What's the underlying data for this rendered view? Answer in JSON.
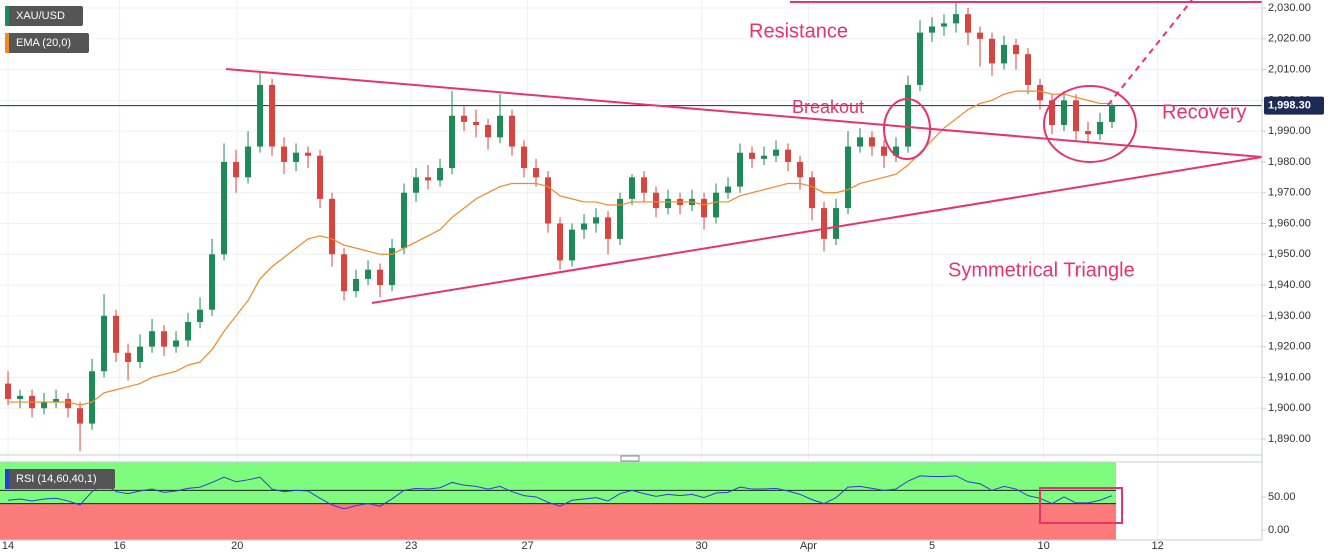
{
  "chart_data": [
    {
      "type": "candlestick",
      "name": "XAU/USD",
      "up_color": "#1e8a57",
      "down_color": "#d64540",
      "x": [
        0,
        1,
        2,
        3,
        4,
        5,
        6,
        7,
        8,
        9,
        10,
        11,
        12,
        13,
        14,
        15,
        16,
        17,
        18,
        19,
        20,
        21,
        22,
        23,
        24,
        25,
        26,
        27,
        28,
        29,
        30,
        31,
        32,
        33,
        34,
        35,
        36,
        37,
        38,
        39,
        40,
        41,
        42,
        43,
        44,
        45,
        46,
        47,
        48,
        49,
        50,
        51,
        52,
        53,
        54,
        55,
        56,
        57,
        58,
        59,
        60,
        61,
        62,
        63,
        64,
        65,
        66,
        67,
        68,
        69,
        70,
        71,
        72,
        73,
        74,
        75,
        76,
        77,
        78,
        79,
        80,
        81,
        82,
        83,
        84,
        85,
        86,
        87,
        88,
        89,
        90,
        91,
        92
      ],
      "ohlc": [
        [
          1908,
          1912,
          1901,
          1903
        ],
        [
          1903,
          1906,
          1900,
          1904
        ],
        [
          1904,
          1906,
          1897,
          1900
        ],
        [
          1900,
          1905,
          1898,
          1902
        ],
        [
          1902,
          1906,
          1900,
          1903
        ],
        [
          1903,
          1905,
          1897,
          1900
        ],
        [
          1900,
          1902,
          1886,
          1895
        ],
        [
          1895,
          1916,
          1893,
          1912
        ],
        [
          1912,
          1937,
          1910,
          1930
        ],
        [
          1930,
          1932,
          1915,
          1918
        ],
        [
          1918,
          1921,
          1909,
          1915
        ],
        [
          1915,
          1924,
          1913,
          1920
        ],
        [
          1920,
          1929,
          1918,
          1925
        ],
        [
          1925,
          1927,
          1917,
          1920
        ],
        [
          1920,
          1925,
          1918,
          1922
        ],
        [
          1922,
          1931,
          1920,
          1928
        ],
        [
          1928,
          1936,
          1926,
          1932
        ],
        [
          1932,
          1955,
          1930,
          1950
        ],
        [
          1950,
          1986,
          1948,
          1980
        ],
        [
          1980,
          1984,
          1970,
          1975
        ],
        [
          1975,
          1990,
          1973,
          1985
        ],
        [
          1985,
          2009,
          1983,
          2005
        ],
        [
          2005,
          2007,
          1982,
          1985
        ],
        [
          1985,
          1988,
          1976,
          1980
        ],
        [
          1980,
          1986,
          1977,
          1983
        ],
        [
          1983,
          1985,
          1978,
          1982
        ],
        [
          1982,
          1984,
          1965,
          1968
        ],
        [
          1968,
          1970,
          1946,
          1950
        ],
        [
          1950,
          1952,
          1935,
          1938
        ],
        [
          1938,
          1945,
          1936,
          1942
        ],
        [
          1942,
          1948,
          1940,
          1945
        ],
        [
          1945,
          1947,
          1936,
          1940
        ],
        [
          1940,
          1955,
          1938,
          1952
        ],
        [
          1952,
          1973,
          1950,
          1970
        ],
        [
          1970,
          1978,
          1967,
          1975
        ],
        [
          1975,
          1979,
          1971,
          1974
        ],
        [
          1974,
          1981,
          1972,
          1978
        ],
        [
          1978,
          2003,
          1976,
          1995
        ],
        [
          1995,
          1998,
          1990,
          1993
        ],
        [
          1993,
          1997,
          1988,
          1992
        ],
        [
          1992,
          1994,
          1984,
          1988
        ],
        [
          1988,
          2002,
          1986,
          1995
        ],
        [
          1995,
          1997,
          1982,
          1985
        ],
        [
          1985,
          1987,
          1975,
          1978
        ],
        [
          1978,
          1981,
          1972,
          1975
        ],
        [
          1975,
          1977,
          1957,
          1960
        ],
        [
          1960,
          1962,
          1945,
          1948
        ],
        [
          1948,
          1960,
          1946,
          1958
        ],
        [
          1958,
          1963,
          1955,
          1960
        ],
        [
          1960,
          1965,
          1957,
          1962
        ],
        [
          1962,
          1964,
          1950,
          1955
        ],
        [
          1955,
          1970,
          1953,
          1968
        ],
        [
          1968,
          1976,
          1966,
          1975
        ],
        [
          1975,
          1977,
          1967,
          1970
        ],
        [
          1970,
          1972,
          1962,
          1965
        ],
        [
          1965,
          1971,
          1963,
          1968
        ],
        [
          1968,
          1970,
          1963,
          1966
        ],
        [
          1966,
          1971,
          1964,
          1968
        ],
        [
          1968,
          1970,
          1958,
          1962
        ],
        [
          1962,
          1973,
          1960,
          1970
        ],
        [
          1970,
          1975,
          1968,
          1972
        ],
        [
          1972,
          1986,
          1970,
          1983
        ],
        [
          1983,
          1985,
          1978,
          1981
        ],
        [
          1981,
          1985,
          1979,
          1982
        ],
        [
          1982,
          1987,
          1980,
          1984
        ],
        [
          1984,
          1986,
          1977,
          1980
        ],
        [
          1980,
          1982,
          1971,
          1975
        ],
        [
          1975,
          1977,
          1961,
          1965
        ],
        [
          1965,
          1967,
          1951,
          1955
        ],
        [
          1955,
          1968,
          1953,
          1965
        ],
        [
          1965,
          1990,
          1963,
          1985
        ],
        [
          1985,
          1991,
          1983,
          1988
        ],
        [
          1988,
          1990,
          1982,
          1985
        ],
        [
          1985,
          1987,
          1978,
          1982
        ],
        [
          1982,
          1988,
          1980,
          1985
        ],
        [
          1985,
          2008,
          1983,
          2005
        ],
        [
          2005,
          2026,
          2003,
          2022
        ],
        [
          2022,
          2027,
          2019,
          2024
        ],
        [
          2024,
          2028,
          2021,
          2025
        ],
        [
          2025,
          2032,
          2022,
          2028
        ],
        [
          2028,
          2030,
          2018,
          2022
        ],
        [
          2022,
          2024,
          2011,
          2020
        ],
        [
          2020,
          2022,
          2008,
          2012
        ],
        [
          2012,
          2021,
          2010,
          2018
        ],
        [
          2018,
          2020,
          2010,
          2015
        ],
        [
          2015,
          2017,
          2002,
          2005
        ],
        [
          2005,
          2007,
          1997,
          2000
        ],
        [
          2000,
          2002,
          1989,
          1992
        ],
        [
          1992,
          2003,
          1990,
          2000
        ],
        [
          2000,
          2002,
          1987,
          1990
        ],
        [
          1990,
          1993,
          1986,
          1989
        ],
        [
          1989,
          1996,
          1987,
          1993
        ],
        [
          1993,
          1999,
          1991,
          1998.3
        ]
      ],
      "overlay": {
        "name": "EMA (20,0)",
        "color": "#f08a24",
        "values": [
          1902,
          1902,
          1902,
          1902,
          1902,
          1902,
          1901,
          1902,
          1905,
          1906,
          1907,
          1908,
          1910,
          1911,
          1912,
          1914,
          1915,
          1919,
          1925,
          1930,
          1935,
          1942,
          1946,
          1949,
          1952,
          1955,
          1956,
          1955,
          1953,
          1952,
          1951,
          1950,
          1950,
          1952,
          1954,
          1956,
          1958,
          1962,
          1965,
          1968,
          1970,
          1972,
          1973,
          1973,
          1973,
          1972,
          1969,
          1968,
          1967,
          1967,
          1966,
          1966,
          1967,
          1967,
          1967,
          1967,
          1967,
          1967,
          1966,
          1967,
          1967,
          1969,
          1970,
          1971,
          1972,
          1973,
          1973,
          1972,
          1970,
          1970,
          1971,
          1973,
          1974,
          1975,
          1976,
          1979,
          1983,
          1987,
          1991,
          1994,
          1997,
          1999,
          2000,
          2002,
          2003,
          2003,
          2003,
          2002,
          2002,
          2001,
          2000,
          1999,
          1999
        ]
      },
      "last_price": {
        "value": 1998.3,
        "label": "1,998.30"
      },
      "annotations": [
        "Resistance",
        "Breakout",
        "Recovery",
        "Symmetrical Triangle"
      ],
      "xlim": [
        -0.67,
        104.5
      ],
      "ylim": [
        1884.8,
        2032.6
      ],
      "xticks": [
        {
          "value": 0,
          "label": "14"
        },
        {
          "value": 9.3,
          "label": "16"
        },
        {
          "value": 19.1,
          "label": "20"
        },
        {
          "value": 33.6,
          "label": "23"
        },
        {
          "value": 43.3,
          "label": "27"
        },
        {
          "value": 57.8,
          "label": "30"
        },
        {
          "value": 66.7,
          "label": "Apr"
        },
        {
          "value": 77,
          "label": "5"
        },
        {
          "value": 86.3,
          "label": "10"
        },
        {
          "value": 95.8,
          "label": "12"
        }
      ],
      "yticks": [
        {
          "value": 2030,
          "label": "2,030.00"
        },
        {
          "value": 2020,
          "label": "2,020.00"
        },
        {
          "value": 2010,
          "label": "2,010.00"
        },
        {
          "value": 2000,
          "label": "2,000.00"
        },
        {
          "value": 1990,
          "label": "1,990.00"
        },
        {
          "value": 1980,
          "label": "1,980.00"
        },
        {
          "value": 1970,
          "label": "1,970.00"
        },
        {
          "value": 1960,
          "label": "1,960.00"
        },
        {
          "value": 1950,
          "label": "1,950.00"
        },
        {
          "value": 1940,
          "label": "1,940.00"
        },
        {
          "value": 1930,
          "label": "1,930.00"
        },
        {
          "value": 1920,
          "label": "1,920.00"
        },
        {
          "value": 1910,
          "label": "1,910.00"
        },
        {
          "value": 1900,
          "label": "1,900.00"
        },
        {
          "value": 1890,
          "label": "1,890.00"
        }
      ],
      "grid": true
    },
    {
      "type": "line",
      "name": "RSI (14,60,40,1)",
      "color": "#2b3fd6",
      "values": [
        45,
        47,
        44,
        47,
        48,
        44,
        38,
        58,
        70,
        58,
        55,
        59,
        62,
        57,
        59,
        63,
        65,
        72,
        80,
        73,
        76,
        80,
        62,
        58,
        60,
        59,
        48,
        38,
        32,
        37,
        40,
        36,
        47,
        60,
        63,
        62,
        64,
        72,
        68,
        66,
        62,
        66,
        58,
        52,
        50,
        42,
        36,
        45,
        47,
        49,
        44,
        55,
        60,
        55,
        51,
        54,
        52,
        54,
        49,
        56,
        57,
        65,
        62,
        62,
        63,
        59,
        54,
        46,
        40,
        49,
        65,
        66,
        63,
        60,
        62,
        74,
        82,
        81,
        81,
        82,
        73,
        70,
        60,
        66,
        62,
        52,
        48,
        40,
        50,
        41,
        41,
        45,
        52
      ],
      "ylim": [
        -15.2,
        103
      ],
      "yticks": [
        {
          "value": 50,
          "label": "50.00"
        },
        {
          "value": 0,
          "label": "0.00"
        }
      ],
      "upper_level": 60,
      "lower_level": 40,
      "upper_color": "#7dfc7d",
      "lower_color": "#fb7b7b"
    }
  ]
}
